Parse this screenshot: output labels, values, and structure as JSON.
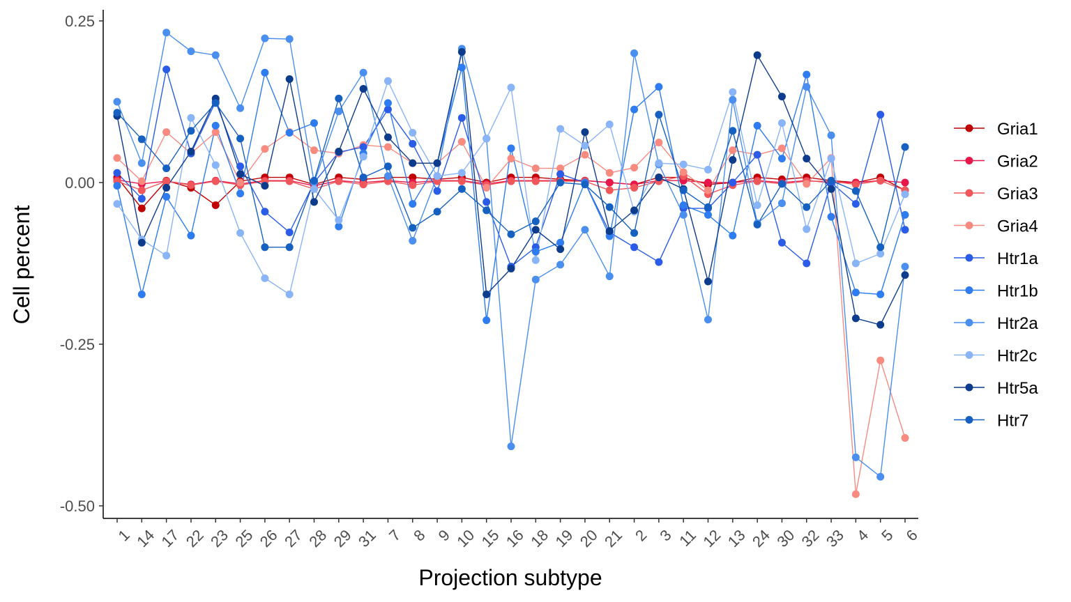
{
  "chart_data": {
    "type": "line",
    "xlabel": "Projection subtype",
    "ylabel": "Cell percent",
    "categories": [
      "1",
      "14",
      "17",
      "22",
      "23",
      "25",
      "26",
      "27",
      "28",
      "29",
      "31",
      "7",
      "8",
      "9",
      "10",
      "15",
      "16",
      "18",
      "19",
      "20",
      "21",
      "2",
      "3",
      "11",
      "12",
      "13",
      "24",
      "30",
      "32",
      "33",
      "4",
      "5",
      "6"
    ],
    "ylim": [
      -0.5,
      0.25
    ],
    "yticks": [
      0.25,
      0.0,
      -0.25,
      -0.5
    ],
    "ytick_labels": [
      "0.25",
      "0.00",
      "-0.25",
      "-0.50"
    ],
    "grid": false,
    "legend_position": "right",
    "series": [
      {
        "name": "Gria1",
        "color": "#C00000",
        "values": [
          0.008,
          -0.04,
          0.003,
          -0.008,
          -0.035,
          0.002,
          0.008,
          0.008,
          -0.003,
          0.008,
          0.005,
          0.008,
          0.008,
          0.005,
          0.008,
          0.0,
          0.008,
          0.008,
          0.005,
          0.003,
          0.0,
          -0.003,
          0.008,
          0.008,
          -0.003,
          0.0,
          0.008,
          0.005,
          0.008,
          0.003,
          0.0,
          0.008,
          -0.012
        ]
      },
      {
        "name": "Gria2",
        "color": "#E8174B",
        "values": [
          0.004,
          -0.002,
          0.002,
          -0.003,
          0.003,
          -0.002,
          0.003,
          0.003,
          -0.005,
          0.003,
          0.0,
          0.003,
          0.0,
          0.003,
          0.003,
          -0.002,
          0.003,
          0.003,
          0.003,
          0.003,
          0.0,
          -0.003,
          0.003,
          0.003,
          0.0,
          0.0,
          0.003,
          0.0,
          0.003,
          0.0,
          0.0,
          0.003,
          0.0
        ]
      },
      {
        "name": "Gria3",
        "color": "#F0565A",
        "values": [
          0.002,
          -0.012,
          0.002,
          -0.004,
          0.002,
          -0.004,
          0.002,
          0.002,
          -0.01,
          0.002,
          -0.003,
          0.002,
          -0.004,
          0.002,
          0.002,
          -0.004,
          0.002,
          0.002,
          0.002,
          0.002,
          -0.012,
          -0.008,
          0.002,
          0.01,
          -0.018,
          -0.004,
          0.002,
          -0.002,
          0.002,
          0.002,
          -0.003,
          0.003,
          -0.012
        ]
      },
      {
        "name": "Gria4",
        "color": "#F88A80",
        "values": [
          0.038,
          0.002,
          0.078,
          0.045,
          0.078,
          0.0,
          0.052,
          0.078,
          0.05,
          0.045,
          0.058,
          0.055,
          0.03,
          0.03,
          0.063,
          -0.008,
          0.037,
          0.022,
          0.022,
          0.043,
          0.015,
          0.023,
          0.062,
          0.016,
          -0.012,
          0.05,
          0.043,
          0.053,
          -0.002,
          0.038,
          -0.482,
          -0.275,
          -0.395
        ]
      },
      {
        "name": "Htr1a",
        "color": "#2A5CE8",
        "values": [
          0.015,
          -0.025,
          0.175,
          0.045,
          0.125,
          0.025,
          -0.045,
          -0.077,
          0.0,
          0.047,
          0.055,
          0.113,
          0.06,
          -0.013,
          0.1,
          -0.03,
          -0.13,
          -0.1,
          0.013,
          0.0,
          -0.077,
          -0.1,
          -0.123,
          -0.04,
          -0.04,
          0.0,
          0.043,
          -0.093,
          -0.125,
          0.0,
          -0.033,
          0.105,
          -0.073
        ]
      },
      {
        "name": "Htr1b",
        "color": "#2E7CF0",
        "values": [
          -0.005,
          -0.173,
          -0.022,
          -0.082,
          0.088,
          -0.017,
          0.17,
          0.077,
          0.092,
          -0.068,
          0.045,
          0.123,
          -0.033,
          0.03,
          0.178,
          -0.213,
          0.053,
          -0.107,
          -0.093,
          0.0,
          -0.083,
          0.113,
          0.148,
          -0.035,
          -0.05,
          -0.082,
          0.088,
          0.037,
          0.167,
          -0.053,
          -0.17,
          -0.173,
          -0.05
        ]
      },
      {
        "name": "Htr2a",
        "color": "#4A8EF0",
        "values": [
          0.125,
          0.03,
          0.232,
          0.203,
          0.197,
          0.115,
          0.223,
          0.222,
          0.0,
          0.11,
          0.17,
          0.01,
          -0.09,
          0.01,
          0.207,
          0.068,
          -0.408,
          -0.15,
          -0.127,
          -0.073,
          -0.145,
          0.2,
          0.028,
          -0.05,
          -0.212,
          0.128,
          -0.063,
          -0.032,
          0.148,
          0.073,
          -0.425,
          -0.455,
          -0.13
        ]
      },
      {
        "name": "Htr2c",
        "color": "#8AB4F8",
        "values": [
          -0.033,
          -0.088,
          -0.113,
          0.1,
          0.027,
          -0.078,
          -0.148,
          -0.173,
          -0.01,
          -0.058,
          0.04,
          0.157,
          0.077,
          0.01,
          0.015,
          0.068,
          0.147,
          -0.12,
          0.083,
          0.057,
          0.09,
          -0.045,
          0.03,
          0.028,
          0.02,
          0.14,
          -0.035,
          0.092,
          -0.072,
          0.037,
          -0.125,
          -0.11,
          -0.018
        ]
      },
      {
        "name": "Htr5a",
        "color": "#0D3C8C",
        "values": [
          0.103,
          -0.093,
          -0.008,
          0.048,
          0.13,
          0.013,
          -0.005,
          0.16,
          -0.03,
          0.048,
          0.145,
          0.07,
          0.03,
          0.03,
          0.202,
          -0.173,
          -0.133,
          -0.073,
          -0.103,
          0.078,
          -0.075,
          -0.043,
          0.008,
          -0.01,
          -0.153,
          0.035,
          0.197,
          0.133,
          0.037,
          -0.01,
          -0.21,
          -0.22,
          -0.143
        ]
      },
      {
        "name": "Htr7",
        "color": "#1560C0",
        "values": [
          0.108,
          0.067,
          0.022,
          0.08,
          0.123,
          0.068,
          -0.1,
          -0.1,
          0.003,
          0.13,
          0.008,
          0.025,
          -0.07,
          -0.045,
          -0.01,
          -0.043,
          -0.08,
          -0.06,
          0.0,
          -0.003,
          -0.038,
          -0.078,
          0.105,
          -0.012,
          -0.038,
          0.08,
          -0.065,
          -0.002,
          -0.038,
          0.003,
          -0.013,
          -0.1,
          0.055
        ]
      }
    ]
  }
}
